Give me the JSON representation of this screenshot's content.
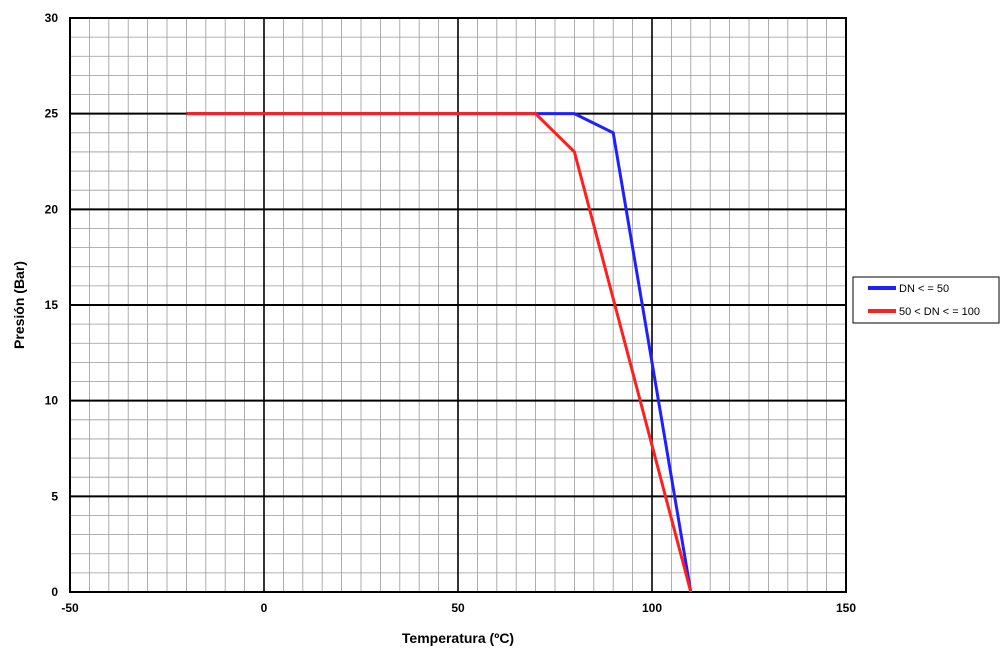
{
  "chart_data": {
    "type": "line",
    "title": "",
    "xlabel": "Temperatura (ºC)",
    "ylabel": "Presión  (Bar)",
    "xlim": [
      -50,
      150
    ],
    "ylim": [
      0,
      30
    ],
    "x_major_step": 50,
    "x_minor_step": 5,
    "y_major_step": 5,
    "y_minor_step": 1,
    "x_tick_labels": [
      "-50",
      "0",
      "50",
      "100",
      "150"
    ],
    "y_tick_labels": [
      "0",
      "5",
      "10",
      "15",
      "20",
      "25",
      "30"
    ],
    "grid": true,
    "legend_position": "right",
    "series": [
      {
        "name": "DN < = 50",
        "color": "#1f1fff",
        "points": [
          [
            -20,
            25
          ],
          [
            80,
            25
          ],
          [
            90,
            24
          ],
          [
            110,
            0
          ]
        ]
      },
      {
        "name": "50 < DN < = 100",
        "color": "#ff1f1f",
        "points": [
          [
            -20,
            25
          ],
          [
            70,
            25
          ],
          [
            80,
            23
          ],
          [
            110,
            0
          ]
        ]
      }
    ]
  }
}
